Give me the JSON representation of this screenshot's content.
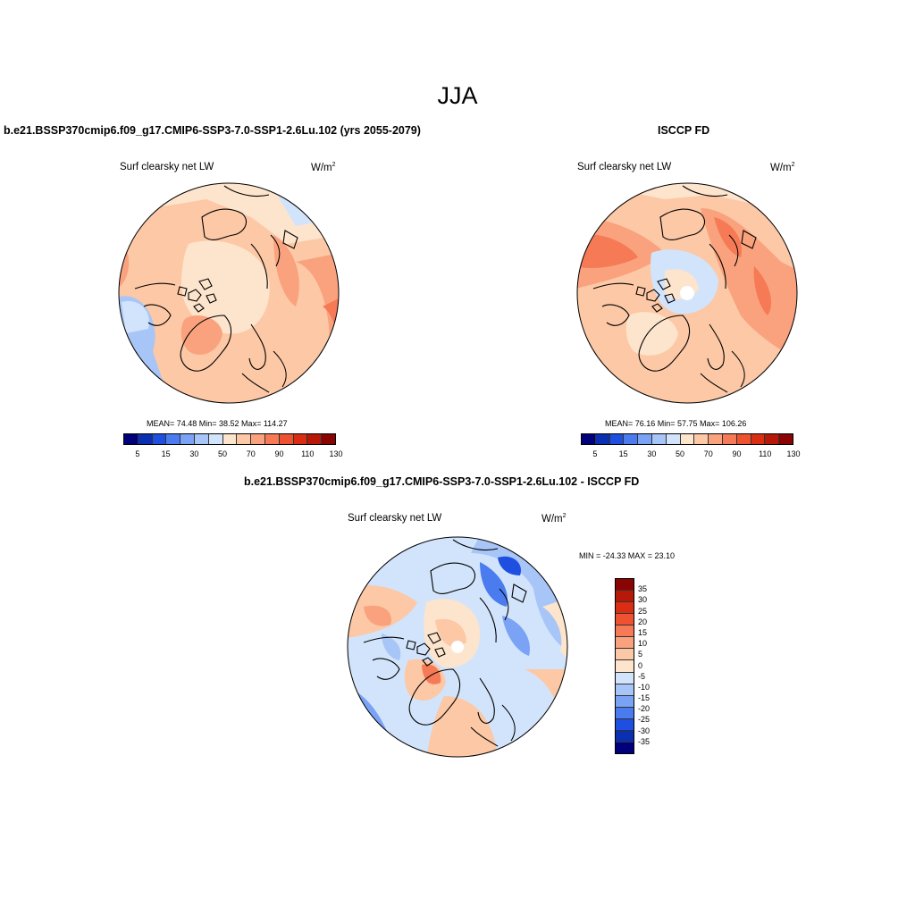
{
  "title": "JJA",
  "panels": {
    "left": {
      "title": "b.e21.BSSP370cmip6.f09_g17.CMIP6-SSP3-7.0-SSP1-2.6Lu.102 (yrs 2055-2079)",
      "variable": "Surf clearsky net LW",
      "units_base": "W/m",
      "units_exp": "2",
      "stats": "MEAN=  74.48  Min=  38.52  Max= 114.27"
    },
    "right": {
      "title": "ISCCP FD",
      "variable": "Surf clearsky net LW",
      "units_base": "W/m",
      "units_exp": "2",
      "stats": "MEAN=  76.16  Min=  57.75  Max= 106.26"
    },
    "diff": {
      "title": "b.e21.BSSP370cmip6.f09_g17.CMIP6-SSP3-7.0-SSP1-2.6Lu.102 - ISCCP FD",
      "variable": "Surf clearsky net LW",
      "units_base": "W/m",
      "units_exp": "2",
      "stats": "MIN = -24.33 MAX =  23.10"
    }
  },
  "colorbar_main": {
    "labels": [
      "5",
      "15",
      "30",
      "50",
      "70",
      "90",
      "110",
      "130"
    ],
    "colors": [
      "#00007a",
      "#0a2fb0",
      "#1f4fe0",
      "#4a7cf0",
      "#7aa2f5",
      "#a8c5f8",
      "#d2e4fb",
      "#fde4cc",
      "#fcc8a6",
      "#f9a27d",
      "#f57a55",
      "#ef5230",
      "#d92e14",
      "#b81808",
      "#8a0404"
    ]
  },
  "colorbar_diff": {
    "labels": [
      "35",
      "30",
      "25",
      "20",
      "15",
      "10",
      "5",
      "0",
      "-5",
      "-10",
      "-15",
      "-20",
      "-25",
      "-30",
      "-35"
    ],
    "colors": [
      "#8a0404",
      "#b81808",
      "#d92e14",
      "#ef5230",
      "#f57a55",
      "#f9a27d",
      "#fcc8a6",
      "#fde4cc",
      "#d2e4fb",
      "#a8c5f8",
      "#7aa2f5",
      "#4a7cf0",
      "#1f4fe0",
      "#0a2fb0",
      "#00007a"
    ]
  }
}
